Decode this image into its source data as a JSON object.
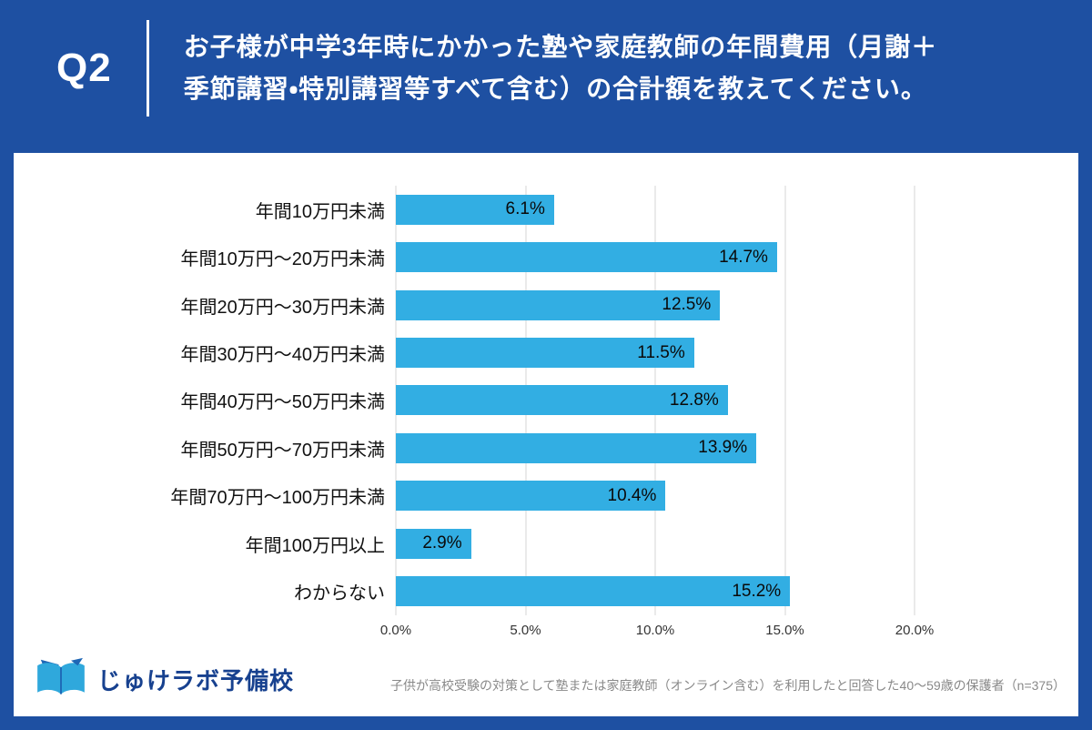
{
  "header": {
    "q_label": "Q2",
    "title_lines": [
      "お子様が中学3年時にかかった塾や家庭教師の年間費用（月謝＋",
      "季節講習・特別講習等すべて含む）の合計額を教えてください。"
    ]
  },
  "chart_data": {
    "type": "bar",
    "orientation": "horizontal",
    "title": "お子様が中学3年時にかかった塾や家庭教師の年間費用（月謝＋季節講習・特別講習等すべて含む）の合計額を教えてください。",
    "categories": [
      "年間10万円未満",
      "年間10万円〜20万円未満",
      "年間20万円〜30万円未満",
      "年間30万円〜40万円未満",
      "年間40万円〜50万円未満",
      "年間50万円〜70万円未満",
      "年間70万円〜100万円未満",
      "年間100万円以上",
      "わからない"
    ],
    "values": [
      6.1,
      14.7,
      12.5,
      11.5,
      12.8,
      13.9,
      10.4,
      2.9,
      15.2
    ],
    "x_ticks": [
      "0.0%",
      "5.0%",
      "10.0%",
      "15.0%",
      "20.0%"
    ],
    "xlim": [
      0,
      20
    ],
    "xlabel": "",
    "ylabel": "",
    "grid": true,
    "legend": false,
    "bar_color": "#32aee3"
  },
  "footer": {
    "logo_text": "じゅけラボ予備校",
    "note": "子供が高校受験の対策として塾または家庭教師（オンライン含む）を利用したと回答した40～59歳の保護者（n=375）"
  },
  "colors": {
    "header_bg": "#1e50a2",
    "bar": "#32aee3",
    "grid": "#d4d4d4",
    "logo_text": "#17418f",
    "logo_icon_light": "#2fa8dc",
    "logo_icon_dark": "#1d66b5",
    "note": "#898989"
  }
}
